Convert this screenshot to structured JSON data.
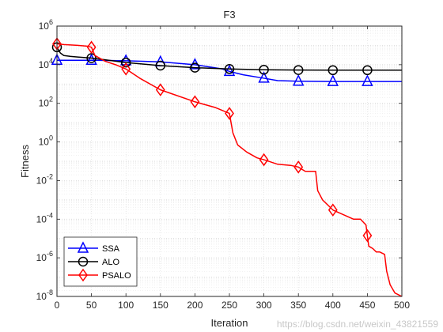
{
  "chart_data": {
    "type": "line",
    "title": "F3",
    "xlabel": "Iteration",
    "ylabel": "Fitness",
    "xlim": [
      0,
      500
    ],
    "ylim": [
      1e-08,
      1000000.0
    ],
    "yscale": "log",
    "grid": true,
    "legend_position": "bottom-left",
    "x_ticks": [
      0,
      50,
      100,
      150,
      200,
      250,
      300,
      350,
      400,
      450,
      500
    ],
    "y_tick_exponents": [
      -8,
      -6,
      -4,
      -2,
      0,
      2,
      4,
      6
    ],
    "series": [
      {
        "name": "SSA",
        "color": "#0000ff",
        "marker": "triangle",
        "x": [
          0,
          10,
          50,
          100,
          150,
          200,
          240,
          250,
          270,
          300,
          320,
          350,
          400,
          450,
          500
        ],
        "y": [
          17000,
          17000,
          17000,
          16000,
          14000,
          10000,
          6000,
          4500,
          3000,
          2000,
          1500,
          1400,
          1350,
          1350,
          1350
        ],
        "marker_x": [
          0,
          50,
          100,
          150,
          200,
          250,
          300,
          350,
          400,
          450
        ]
      },
      {
        "name": "ALO",
        "color": "#000000",
        "marker": "circle",
        "x": [
          0,
          2,
          5,
          10,
          20,
          30,
          50,
          75,
          100,
          150,
          200,
          250,
          300,
          350,
          400,
          450,
          500
        ],
        "y": [
          80000,
          60000,
          40000,
          30000,
          27000,
          25000,
          22000,
          17000,
          13000,
          9000,
          7000,
          6000,
          5500,
          5300,
          5200,
          5200,
          5200
        ],
        "marker_x": [
          0,
          50,
          100,
          150,
          200,
          250,
          300,
          350,
          400,
          450
        ]
      },
      {
        "name": "PSALO",
        "color": "#ff0000",
        "marker": "diamond",
        "x": [
          0,
          10,
          30,
          45,
          50,
          55,
          70,
          85,
          100,
          120,
          150,
          200,
          230,
          250,
          255,
          262,
          275,
          290,
          300,
          320,
          340,
          350,
          360,
          375,
          378,
          385,
          400,
          430,
          440,
          448,
          452,
          458,
          463,
          468,
          475,
          478,
          483,
          490,
          500
        ],
        "y": [
          120000,
          110000,
          100000,
          90000,
          80000,
          30000,
          15000,
          10000,
          6000,
          2000,
          500,
          120,
          60,
          30,
          3,
          0.7,
          0.3,
          0.15,
          0.12,
          0.07,
          0.06,
          0.05,
          0.03,
          0.03,
          0.003,
          0.001,
          0.0003,
          0.0001,
          0.0001,
          5e-05,
          4e-06,
          3e-06,
          2e-06,
          2e-06,
          1.5e-06,
          2e-07,
          4e-08,
          1.5e-08,
          1e-08
        ],
        "marker_x": [
          0,
          50,
          100,
          150,
          200,
          250,
          300,
          350,
          400,
          450
        ]
      }
    ],
    "legend": [
      "SSA",
      "ALO",
      "PSALO"
    ]
  },
  "watermark_text": "https://blog.csdn.net/weixin_43821559"
}
